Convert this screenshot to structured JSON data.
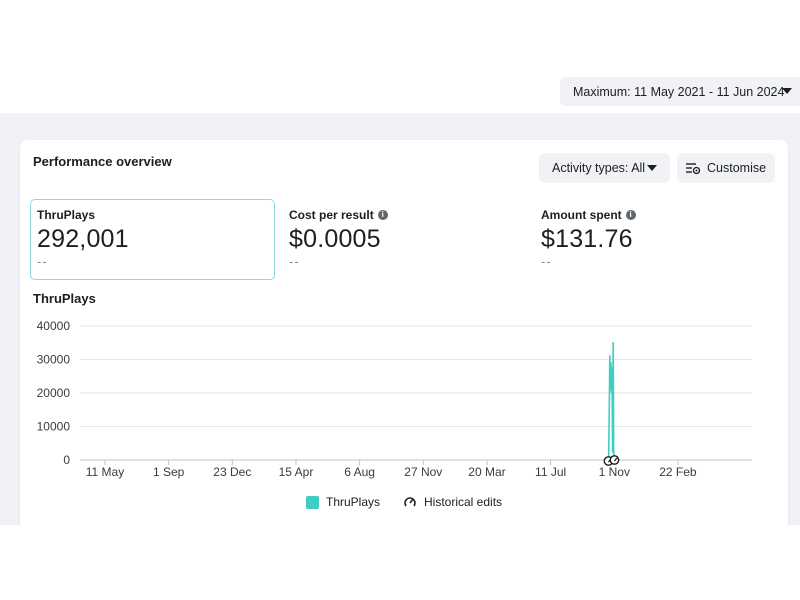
{
  "header": {
    "date_range_label": "Maximum: 11 May 2021 - 11 Jun 2024"
  },
  "card": {
    "title": "Performance overview",
    "activity_button_label": "Activity types: All",
    "customise_button_label": "Customise"
  },
  "metrics": [
    {
      "label": "ThruPlays",
      "value": "292,001",
      "compare": "--",
      "info_icon": false
    },
    {
      "label": "Cost per result",
      "value": "$0.0005",
      "compare": "--",
      "info_icon": true
    },
    {
      "label": "Amount spent",
      "value": "$131.76",
      "compare": "--",
      "info_icon": true
    }
  ],
  "chart_title": "ThruPlays",
  "legend": {
    "series_label": "ThruPlays",
    "edits_label": "Historical edits"
  },
  "colors": {
    "series": "#3ecec3",
    "grid": "#e4e6eb",
    "selected_border": "#8fd8e8"
  },
  "chart_data": {
    "type": "line",
    "title": "ThruPlays",
    "xlabel": "",
    "ylabel": "",
    "x_ticks": [
      "11 May",
      "1 Sep",
      "23 Dec",
      "15 Apr",
      "6 Aug",
      "27 Nov",
      "20 Mar",
      "11 Jul",
      "1 Nov",
      "22 Feb"
    ],
    "y_ticks": [
      0,
      10000,
      20000,
      30000,
      40000
    ],
    "y_tick_labels": [
      "0",
      "10000",
      "20000",
      "30000",
      "40000"
    ],
    "ylim": [
      0,
      40000
    ],
    "grid": true,
    "legend_position": "bottom",
    "series": [
      {
        "name": "ThruPlays",
        "points": [
          {
            "date": "2023-10-22",
            "value": 0
          },
          {
            "date": "2023-10-23",
            "value": 12500
          },
          {
            "date": "2023-10-24",
            "value": 31000
          },
          {
            "date": "2023-10-25",
            "value": 21000
          },
          {
            "date": "2023-10-26",
            "value": 29000
          },
          {
            "date": "2023-10-27",
            "value": 20000
          },
          {
            "date": "2023-10-28",
            "value": 27500
          },
          {
            "date": "2023-10-29",
            "value": 2500
          },
          {
            "date": "2023-10-30",
            "value": 35000
          },
          {
            "date": "2023-10-31",
            "value": 0
          }
        ]
      }
    ]
  }
}
